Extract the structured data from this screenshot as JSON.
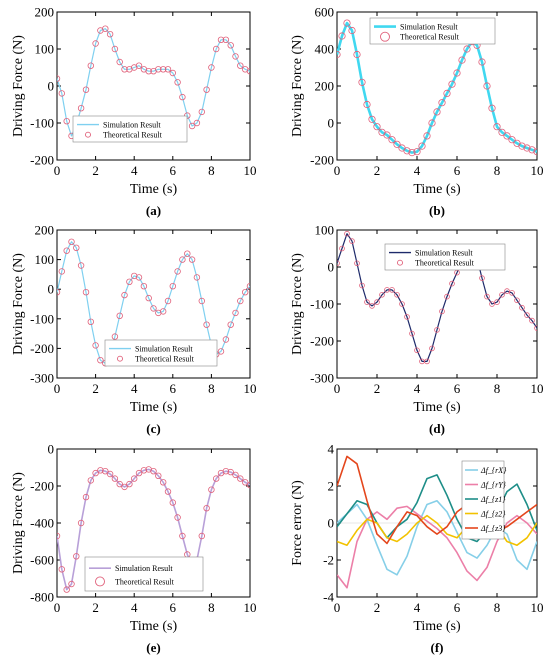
{
  "colors": {
    "sim_light": "#7fd0f0",
    "sim_bold": "#40d8f0",
    "sim_dark": "#1e2a6a",
    "sim_violet": "#b8a0d8",
    "theory": "#e0607a",
    "axis": "#000000"
  },
  "chart_data": [
    {
      "type": "line",
      "panel_label": "(a)",
      "xlabel": "Time (s)",
      "ylabel": "Driving Force (N)",
      "xlim": [
        0,
        10
      ],
      "ylim": [
        -200,
        200
      ],
      "xticks": [
        "0",
        "2",
        "4",
        "6",
        "8",
        "10"
      ],
      "yticks": [
        "-200",
        "-100",
        "0",
        "100",
        "200"
      ],
      "legend_position": "bottom-left",
      "series": [
        {
          "name": "Simulation Result",
          "style": "line"
        },
        {
          "name": "Theoretical Result",
          "style": "markers"
        }
      ],
      "x": [
        0,
        0.25,
        0.5,
        0.75,
        1,
        1.25,
        1.5,
        1.75,
        2,
        2.25,
        2.5,
        2.75,
        3,
        3.25,
        3.5,
        3.75,
        4,
        4.25,
        4.5,
        4.75,
        5,
        5.25,
        5.5,
        5.75,
        6,
        6.25,
        6.5,
        6.75,
        7,
        7.25,
        7.5,
        7.75,
        8,
        8.25,
        8.5,
        8.75,
        9,
        9.25,
        9.5,
        9.75,
        10
      ],
      "y": [
        20,
        -20,
        -95,
        -135,
        -105,
        -60,
        -10,
        55,
        115,
        150,
        155,
        140,
        100,
        65,
        45,
        45,
        50,
        55,
        45,
        40,
        40,
        45,
        45,
        45,
        35,
        10,
        -30,
        -80,
        -108,
        -100,
        -70,
        -10,
        50,
        100,
        125,
        125,
        110,
        80,
        55,
        45,
        40
      ]
    },
    {
      "type": "line",
      "panel_label": "(b)",
      "xlabel": "Time (s)",
      "ylabel": "Driving Force (N)",
      "xlim": [
        0,
        10
      ],
      "ylim": [
        -200,
        600
      ],
      "xticks": [
        "0",
        "2",
        "4",
        "6",
        "8",
        "10"
      ],
      "yticks": [
        "-200",
        "0",
        "200",
        "400",
        "600"
      ],
      "legend_position": "top-center",
      "series": [
        {
          "name": "Simulation Result",
          "style": "line"
        },
        {
          "name": "Theoretical Result",
          "style": "markers"
        }
      ],
      "x": [
        0,
        0.25,
        0.5,
        0.75,
        1,
        1.25,
        1.5,
        1.75,
        2,
        2.25,
        2.5,
        2.75,
        3,
        3.25,
        3.5,
        3.75,
        4,
        4.25,
        4.5,
        4.75,
        5,
        5.25,
        5.5,
        5.75,
        6,
        6.25,
        6.5,
        6.75,
        7,
        7.25,
        7.5,
        7.75,
        8,
        8.25,
        8.5,
        8.75,
        9,
        9.25,
        9.5,
        9.75,
        10
      ],
      "y": [
        370,
        470,
        540,
        500,
        370,
        220,
        100,
        20,
        -20,
        -50,
        -65,
        -90,
        -115,
        -135,
        -150,
        -160,
        -155,
        -125,
        -70,
        0,
        60,
        110,
        160,
        210,
        270,
        340,
        400,
        440,
        420,
        330,
        200,
        80,
        -20,
        -50,
        -70,
        -90,
        -110,
        -125,
        -135,
        -145,
        -155
      ]
    },
    {
      "type": "line",
      "panel_label": "(c)",
      "xlabel": "Time (s)",
      "ylabel": "Driving Force (N)",
      "xlim": [
        0,
        10
      ],
      "ylim": [
        -300,
        200
      ],
      "xticks": [
        "0",
        "2",
        "4",
        "6",
        "8",
        "10"
      ],
      "yticks": [
        "-300",
        "-200",
        "-100",
        "0",
        "100",
        "200"
      ],
      "legend_position": "bottom-right",
      "series": [
        {
          "name": "Simulation Result",
          "style": "line"
        },
        {
          "name": "Theoretical Result",
          "style": "markers"
        }
      ],
      "x": [
        0,
        0.25,
        0.5,
        0.75,
        1,
        1.25,
        1.5,
        1.75,
        2,
        2.25,
        2.5,
        2.75,
        3,
        3.25,
        3.5,
        3.75,
        4,
        4.25,
        4.5,
        4.75,
        5,
        5.25,
        5.5,
        5.75,
        6,
        6.25,
        6.5,
        6.75,
        7,
        7.25,
        7.5,
        7.75,
        8,
        8.25,
        8.5,
        8.75,
        9,
        9.25,
        9.5,
        9.75,
        10
      ],
      "y": [
        -10,
        60,
        130,
        160,
        140,
        80,
        -10,
        -110,
        -190,
        -240,
        -250,
        -220,
        -160,
        -90,
        -20,
        25,
        45,
        40,
        10,
        -30,
        -65,
        -80,
        -75,
        -40,
        10,
        60,
        100,
        120,
        100,
        40,
        -40,
        -120,
        -190,
        -220,
        -210,
        -170,
        -120,
        -80,
        -40,
        -10,
        10
      ]
    },
    {
      "type": "line",
      "panel_label": "(d)",
      "xlabel": "Time (s)",
      "ylabel": "Driving Force (N)",
      "xlim": [
        0,
        10
      ],
      "ylim": [
        -300,
        100
      ],
      "xticks": [
        "0",
        "2",
        "4",
        "6",
        "8",
        "10"
      ],
      "yticks": [
        "-300",
        "-200",
        "-100",
        "0",
        "100"
      ],
      "legend_position": "top-right",
      "series": [
        {
          "name": "Simulation Result",
          "style": "line"
        },
        {
          "name": "Theoretical Result",
          "style": "markers"
        }
      ],
      "x": [
        0,
        0.25,
        0.5,
        0.75,
        1,
        1.25,
        1.5,
        1.75,
        2,
        2.25,
        2.5,
        2.75,
        3,
        3.25,
        3.5,
        3.75,
        4,
        4.25,
        4.5,
        4.75,
        5,
        5.25,
        5.5,
        5.75,
        6,
        6.25,
        6.5,
        6.75,
        7,
        7.25,
        7.5,
        7.75,
        8,
        8.25,
        8.5,
        8.75,
        9,
        9.25,
        9.5,
        9.75,
        10
      ],
      "y": [
        10,
        50,
        90,
        70,
        10,
        -50,
        -95,
        -105,
        -95,
        -75,
        -62,
        -62,
        -75,
        -100,
        -135,
        -180,
        -225,
        -255,
        -255,
        -220,
        -170,
        -120,
        -80,
        -45,
        -15,
        15,
        40,
        50,
        25,
        -30,
        -80,
        -100,
        -95,
        -75,
        -65,
        -70,
        -90,
        -110,
        -130,
        -145,
        -165
      ]
    },
    {
      "type": "line",
      "panel_label": "(e)",
      "xlabel": "Time (s)",
      "ylabel": "Driving Force (N)",
      "xlim": [
        0,
        10
      ],
      "ylim": [
        -800,
        0
      ],
      "xticks": [
        "0",
        "2",
        "4",
        "6",
        "8",
        "10"
      ],
      "yticks": [
        "-800",
        "-600",
        "-400",
        "-200",
        "0"
      ],
      "legend_position": "bottom-left",
      "series": [
        {
          "name": "Simulation Result",
          "style": "line"
        },
        {
          "name": "Theoretical Result",
          "style": "markers"
        }
      ],
      "x": [
        0,
        0.25,
        0.5,
        0.75,
        1,
        1.25,
        1.5,
        1.75,
        2,
        2.25,
        2.5,
        2.75,
        3,
        3.25,
        3.5,
        3.75,
        4,
        4.25,
        4.5,
        4.75,
        5,
        5.25,
        5.5,
        5.75,
        6,
        6.25,
        6.5,
        6.75,
        7,
        7.25,
        7.5,
        7.75,
        8,
        8.25,
        8.5,
        8.75,
        9,
        9.25,
        9.5,
        9.75,
        10
      ],
      "y": [
        -470,
        -650,
        -760,
        -730,
        -580,
        -400,
        -260,
        -170,
        -130,
        -115,
        -120,
        -135,
        -160,
        -190,
        -205,
        -190,
        -160,
        -130,
        -115,
        -110,
        -120,
        -145,
        -180,
        -230,
        -290,
        -370,
        -470,
        -570,
        -625,
        -600,
        -470,
        -320,
        -220,
        -160,
        -130,
        -120,
        -125,
        -140,
        -160,
        -180,
        -195
      ]
    },
    {
      "type": "line",
      "panel_label": "(f)",
      "xlabel": "Time (s)",
      "ylabel": "Force error (N)",
      "xlim": [
        0,
        10
      ],
      "ylim": [
        -4,
        4
      ],
      "xticks": [
        "0",
        "2",
        "4",
        "6",
        "8",
        "10"
      ],
      "yticks": [
        "-4",
        "-2",
        "0",
        "2",
        "4"
      ],
      "legend_position": "top-right",
      "series": [
        {
          "name": "Δf_{rX}",
          "color": "#86cfe8",
          "x": [
            0,
            0.5,
            1,
            1.5,
            2,
            2.5,
            3,
            3.5,
            4,
            4.5,
            5,
            5.5,
            6,
            6.5,
            7,
            7.5,
            8,
            8.5,
            9,
            9.5,
            10
          ],
          "y": [
            0,
            0.5,
            1.0,
            0.2,
            -1.2,
            -2.5,
            -2.8,
            -1.8,
            -0.2,
            1.0,
            1.2,
            0.6,
            -0.5,
            -1.6,
            -1.9,
            -1.2,
            -0.2,
            -0.6,
            -2.0,
            -2.5,
            -1.0
          ]
        },
        {
          "name": "Δf_{rY}",
          "color": "#ec7fa8",
          "x": [
            0,
            0.5,
            1,
            1.5,
            2,
            2.5,
            3,
            3.5,
            4,
            4.5,
            5,
            5.5,
            6,
            6.5,
            7,
            7.5,
            8,
            8.5,
            9,
            9.5,
            10
          ],
          "y": [
            -2.8,
            -3.5,
            -1.0,
            0.2,
            0.6,
            0.2,
            0.8,
            0.9,
            0.5,
            0.1,
            -0.3,
            -0.8,
            -1.6,
            -2.6,
            -3.1,
            -2.4,
            -1.0,
            0.0,
            0.4,
            0.0,
            -0.6
          ]
        },
        {
          "name": "Δf_{z1}",
          "color": "#1e8e88",
          "x": [
            0,
            0.5,
            1,
            1.5,
            2,
            2.5,
            3,
            3.5,
            4,
            4.5,
            5,
            5.5,
            6,
            6.5,
            7,
            7.5,
            8,
            8.5,
            9,
            9.5,
            10
          ],
          "y": [
            -0.2,
            0.5,
            1.2,
            1.0,
            0.0,
            -0.8,
            -0.2,
            0.2,
            1.1,
            2.4,
            2.6,
            1.5,
            0.2,
            -0.8,
            -1.0,
            -0.4,
            0.6,
            1.7,
            2.1,
            1.0,
            -0.4
          ]
        },
        {
          "name": "Δf_{z2}",
          "color": "#f2c200",
          "x": [
            0,
            0.5,
            1,
            1.5,
            2,
            2.5,
            3,
            3.5,
            4,
            4.5,
            5,
            5.5,
            6,
            6.5,
            7,
            7.5,
            8,
            8.5,
            9,
            9.5,
            10
          ],
          "y": [
            -1.0,
            -1.2,
            -0.4,
            0.2,
            0.0,
            -0.8,
            -1.0,
            -0.6,
            0.0,
            0.4,
            0.0,
            -0.6,
            -0.8,
            -0.2,
            0.4,
            0.6,
            -0.2,
            -1.0,
            -1.2,
            -0.8,
            0.0
          ]
        },
        {
          "name": "Δf_{z3}",
          "color": "#e4461c",
          "x": [
            0,
            0.5,
            1,
            1.5,
            2,
            2.5,
            3,
            3.5,
            4,
            4.5,
            5,
            5.5,
            6,
            6.5,
            7,
            7.5,
            8,
            8.5,
            9,
            9.5,
            10
          ],
          "y": [
            2.0,
            3.6,
            3.2,
            1.2,
            -0.6,
            -1.1,
            -0.2,
            0.6,
            0.4,
            -0.2,
            -0.6,
            -0.2,
            0.6,
            1.0,
            0.8,
            0.2,
            -0.4,
            -0.2,
            0.2,
            0.6,
            1.0
          ]
        }
      ]
    }
  ]
}
